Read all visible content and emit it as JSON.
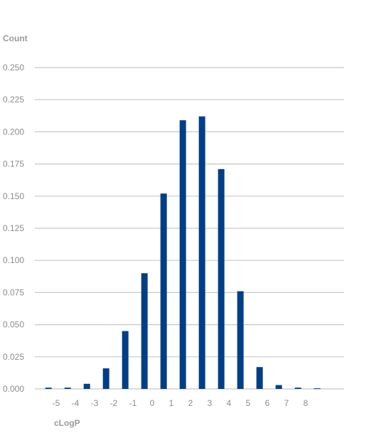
{
  "chart_data": {
    "type": "bar",
    "ylabel": "Count",
    "xlabel": "cLogP",
    "categories": [
      "-5",
      "-4",
      "-3",
      "-2",
      "-1",
      "0",
      "1",
      "2",
      "3",
      "4",
      "5",
      "6",
      "7",
      "8"
    ],
    "values": [
      0.001,
      0.001,
      0.004,
      0.016,
      0.045,
      0.09,
      0.152,
      0.209,
      0.212,
      0.171,
      0.076,
      0.017,
      0.003,
      0.001,
      0.0005
    ],
    "x": [
      -5.4,
      -4.4,
      -3.4,
      -2.4,
      -1.4,
      -0.4,
      0.6,
      1.6,
      2.6,
      3.6,
      4.6,
      5.6,
      6.6,
      7.6,
      8.6
    ],
    "ylim": [
      0,
      0.25
    ],
    "yticks": [
      "0.000",
      "0.025",
      "0.050",
      "0.075",
      "0.100",
      "0.125",
      "0.150",
      "0.175",
      "0.200",
      "0.225",
      "0.250"
    ],
    "grid": true,
    "bar_color": "#003f87",
    "grid_color": "#c8c8c8",
    "text_color": "#8c8c8c"
  }
}
